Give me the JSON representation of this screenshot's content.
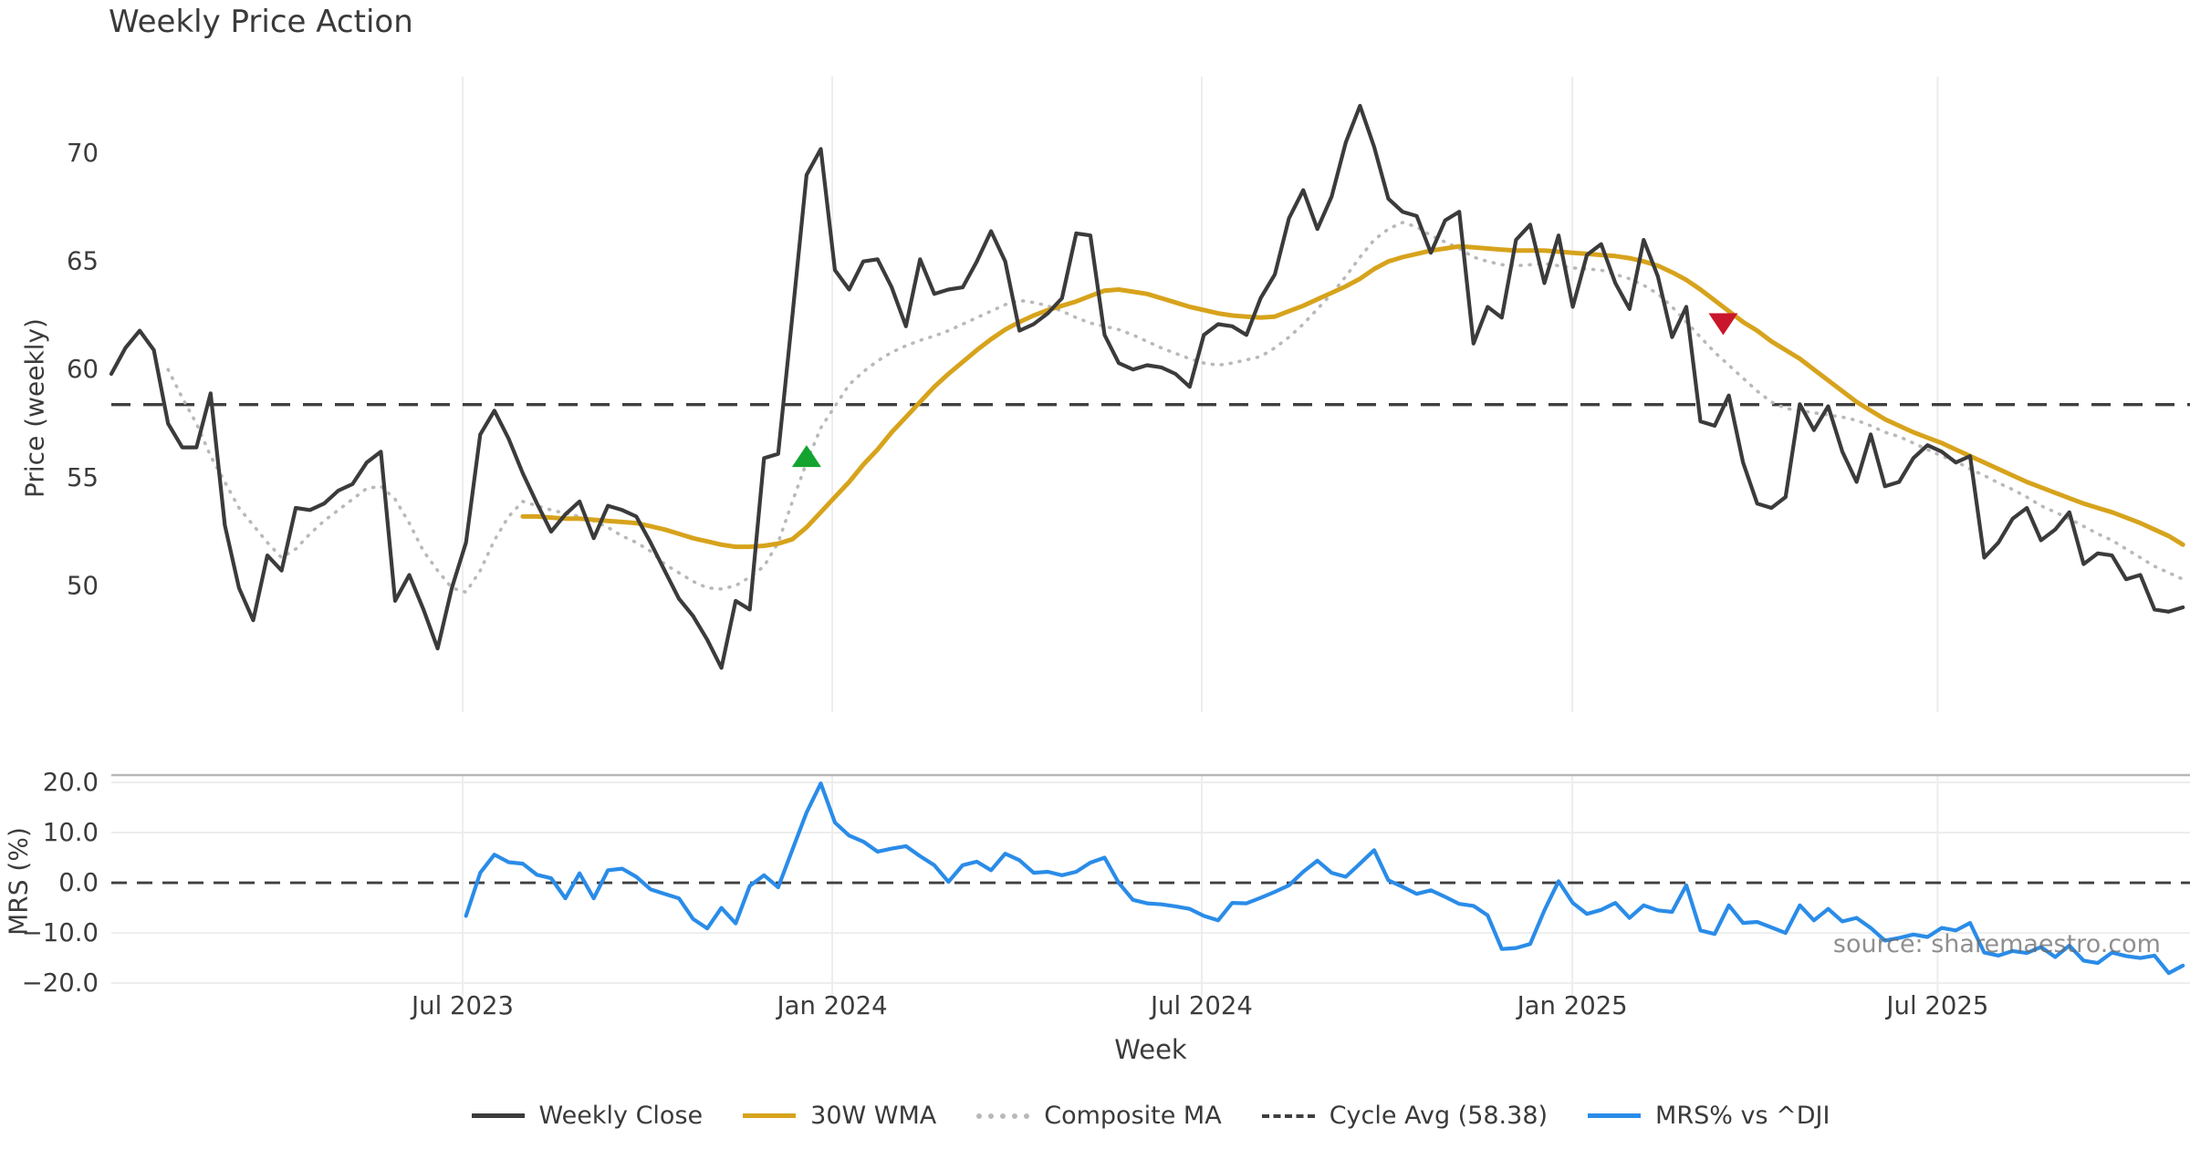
{
  "title": "Weekly Price Action",
  "source_note": "source: sharemaestro.com",
  "colors": {
    "close": "#3b3b3b",
    "wma": "#d7a31c",
    "composite": "#b9b9b9",
    "cycle_avg": "#3f3f3f",
    "mrs": "#2a8ce8",
    "buy_marker": "#12a42f",
    "sell_marker": "#c9162c",
    "gridline": "#ededed",
    "mrs_top_spine": "#b8b8b8",
    "background": "#ffffff"
  },
  "legend": [
    {
      "label": "Weekly Close",
      "color": "#3b3b3b",
      "style": "solid"
    },
    {
      "label": "30W WMA",
      "color": "#d7a31c",
      "style": "solid"
    },
    {
      "label": "Composite MA",
      "color": "#b9b9b9",
      "style": "dotted"
    },
    {
      "label": "Cycle Avg (58.38)",
      "color": "#3f3f3f",
      "style": "dashed"
    },
    {
      "label": "MRS% vs ^DJI",
      "color": "#2a8ce8",
      "style": "solid"
    }
  ],
  "chart_data": {
    "type": "line",
    "title": "Weekly Price Action",
    "x": {
      "label": "Week",
      "unit": "week_index",
      "domain": [
        0,
        146.5
      ],
      "ticks": [
        {
          "label": "Jul 2023",
          "week": 24.76
        },
        {
          "label": "Jan 2024",
          "week": 50.81
        },
        {
          "label": "Jul 2024",
          "week": 76.85
        },
        {
          "label": "Jan 2025",
          "week": 102.97
        },
        {
          "label": "Jul 2025",
          "week": 128.71
        }
      ]
    },
    "panels": [
      {
        "name": "price",
        "ylabel": "Price (weekly)",
        "ylim": [
          44.15,
          73.55
        ],
        "yticks": [
          70,
          65,
          60,
          55,
          50
        ],
        "ytick_format": "integer",
        "cycle_avg": {
          "label": "Cycle Avg (58.38)",
          "value": 58.38
        },
        "series": [
          {
            "name": "Composite MA",
            "color": "#b9b9b9",
            "style": "dotted",
            "width": 3.6,
            "start_week": 4,
            "values": [
              60.0,
              58.7,
              57.5,
              56.0,
              54.8,
              53.6,
              52.8,
              52.0,
              51.3,
              51.7,
              52.4,
              53.0,
              53.5,
              54.0,
              54.5,
              54.6,
              54.0,
              52.9,
              51.6,
              50.7,
              49.9,
              49.7,
              50.7,
              52.1,
              53.2,
              53.9,
              53.7,
              53.5,
              53.35,
              53.2,
              53.0,
              52.7,
              52.3,
              52.0,
              51.6,
              51.0,
              50.6,
              50.2,
              49.9,
              49.85,
              50.0,
              50.4,
              50.9,
              52.0,
              53.9,
              55.7,
              57.3,
              58.3,
              59.3,
              59.9,
              60.4,
              60.8,
              61.1,
              61.35,
              61.55,
              61.8,
              62.1,
              62.4,
              62.7,
              63.0,
              63.2,
              63.1,
              62.95,
              62.7,
              62.4,
              62.15,
              62.0,
              61.85,
              61.6,
              61.3,
              61.0,
              60.75,
              60.5,
              60.3,
              60.2,
              60.3,
              60.45,
              60.6,
              61.0,
              61.5,
              62.1,
              62.8,
              63.5,
              64.3,
              65.2,
              66.0,
              66.5,
              66.8,
              66.6,
              66.2,
              65.9,
              65.6,
              65.2,
              65.0,
              64.85,
              64.8,
              64.85,
              64.9,
              64.8,
              64.7,
              64.65,
              64.6,
              64.4,
              64.2,
              63.9,
              63.5,
              62.9,
              62.2,
              61.5,
              60.8,
              60.2,
              59.6,
              59.0,
              58.5,
              58.2,
              58.1,
              58.0,
              57.9,
              57.8,
              57.65,
              57.4,
              57.1,
              56.9,
              56.6,
              56.3,
              56.0,
              55.75,
              55.4,
              55.1,
              54.75,
              54.45,
              54.1,
              53.7,
              53.4,
              53.1,
              52.75,
              52.4,
              52.1,
              51.7,
              51.3,
              50.9,
              50.6,
              50.3
            ]
          },
          {
            "name": "30W WMA",
            "color": "#d7a31c",
            "style": "solid",
            "width": 5,
            "start_week": 29,
            "values": [
              53.2,
              53.2,
              53.15,
              53.1,
              53.1,
              53.05,
              53.0,
              52.95,
              52.9,
              52.75,
              52.6,
              52.4,
              52.2,
              52.05,
              51.9,
              51.8,
              51.8,
              51.85,
              51.95,
              52.15,
              52.7,
              53.4,
              54.1,
              54.8,
              55.6,
              56.3,
              57.1,
              57.8,
              58.5,
              59.2,
              59.8,
              60.35,
              60.9,
              61.4,
              61.85,
              62.2,
              62.5,
              62.75,
              62.95,
              63.15,
              63.4,
              63.65,
              63.7,
              63.6,
              63.5,
              63.3,
              63.1,
              62.9,
              62.75,
              62.6,
              62.5,
              62.45,
              62.4,
              62.45,
              62.7,
              62.95,
              63.25,
              63.55,
              63.85,
              64.2,
              64.65,
              65.0,
              65.2,
              65.35,
              65.5,
              65.6,
              65.7,
              65.65,
              65.6,
              65.55,
              65.5,
              65.5,
              65.5,
              65.45,
              65.4,
              65.35,
              65.3,
              65.25,
              65.15,
              65.0,
              64.8,
              64.5,
              64.15,
              63.7,
              63.2,
              62.7,
              62.2,
              61.8,
              61.3,
              60.9,
              60.5,
              60.0,
              59.5,
              59.0,
              58.5,
              58.1,
              57.7,
              57.4,
              57.1,
              56.85,
              56.6,
              56.3,
              56.0,
              55.7,
              55.4,
              55.1,
              54.8,
              54.55,
              54.3,
              54.05,
              53.8,
              53.6,
              53.4,
              53.15,
              52.9,
              52.6,
              52.3,
              51.9
            ]
          },
          {
            "name": "Weekly Close",
            "color": "#3b3b3b",
            "style": "solid",
            "width": 4.2,
            "start_week": 0,
            "values": [
              59.8,
              61.0,
              61.8,
              60.9,
              57.5,
              56.4,
              56.4,
              58.9,
              52.8,
              49.9,
              48.4,
              51.4,
              50.7,
              53.6,
              53.5,
              53.8,
              54.4,
              54.7,
              55.7,
              56.2,
              49.3,
              50.5,
              48.9,
              47.1,
              49.9,
              52.0,
              57.0,
              58.1,
              56.8,
              55.2,
              53.8,
              52.5,
              53.3,
              53.9,
              52.2,
              53.7,
              53.5,
              53.2,
              52.0,
              50.7,
              49.4,
              48.6,
              47.5,
              46.2,
              49.3,
              48.9,
              55.9,
              56.1,
              62.5,
              69.0,
              70.2,
              64.6,
              63.7,
              65.0,
              65.1,
              63.8,
              62.0,
              65.1,
              63.5,
              63.7,
              63.8,
              65.0,
              66.4,
              65.0,
              61.8,
              62.1,
              62.6,
              63.3,
              66.3,
              66.2,
              61.6,
              60.3,
              60.0,
              60.2,
              60.1,
              59.8,
              59.2,
              61.6,
              62.1,
              62.0,
              61.6,
              63.3,
              64.4,
              67.0,
              68.3,
              66.5,
              68.0,
              70.5,
              72.2,
              70.3,
              67.9,
              67.3,
              67.1,
              65.4,
              66.9,
              67.3,
              61.2,
              62.9,
              62.4,
              66.0,
              66.7,
              64.0,
              66.2,
              62.9,
              65.3,
              65.8,
              64.0,
              62.8,
              66.0,
              64.3,
              61.5,
              62.9,
              57.6,
              57.4,
              58.8,
              55.7,
              53.8,
              53.6,
              54.1,
              58.4,
              57.2,
              58.3,
              56.2,
              54.8,
              57.0,
              54.6,
              54.8,
              55.9,
              56.5,
              56.2,
              55.7,
              56.0,
              51.3,
              52.0,
              53.1,
              53.6,
              52.1,
              52.6,
              53.4,
              51.0,
              51.5,
              51.4,
              50.3,
              50.5,
              48.9,
              48.8,
              49.0
            ]
          }
        ],
        "markers": [
          {
            "shape": "triangle-up",
            "color": "#12a42f",
            "week": 49.0,
            "value": 56.0
          },
          {
            "shape": "triangle-down",
            "color": "#c9162c",
            "week": 113.6,
            "value": 62.1
          }
        ]
      },
      {
        "name": "mrs",
        "ylabel": "MRS (%)",
        "ylim": [
          -22.7,
          21.45
        ],
        "yticks": [
          20,
          10,
          0,
          -10,
          -20
        ],
        "ytick_format": "one_decimal",
        "zero_line_dashed": true,
        "series": [
          {
            "name": "MRS% vs ^DJI",
            "color": "#2a8ce8",
            "style": "solid",
            "width": 4.2,
            "start_week": 25,
            "values": [
              -6.6,
              2.0,
              5.6,
              4.1,
              3.8,
              1.6,
              0.9,
              -3.1,
              1.9,
              -3.1,
              2.5,
              2.8,
              1.2,
              -1.3,
              -2.2,
              -3.1,
              -7.2,
              -9.1,
              -5.0,
              -8.1,
              -0.6,
              1.5,
              -0.9,
              6.6,
              14.0,
              19.8,
              12.0,
              9.4,
              8.2,
              6.2,
              6.8,
              7.3,
              5.3,
              3.5,
              0.2,
              3.5,
              4.2,
              2.5,
              5.8,
              4.5,
              2.0,
              2.2,
              1.5,
              2.2,
              4.0,
              5.0,
              0.0,
              -3.4,
              -4.1,
              -4.3,
              -4.7,
              -5.2,
              -6.6,
              -7.5,
              -4.0,
              -4.1,
              -3.0,
              -1.8,
              -0.5,
              2.2,
              4.4,
              2.0,
              1.2,
              3.8,
              6.5,
              0.5,
              -0.8,
              -2.2,
              -1.5,
              -2.8,
              -4.2,
              -4.6,
              -6.5,
              -13.2,
              -13.0,
              -12.2,
              -5.5,
              0.3,
              -4.0,
              -6.2,
              -5.4,
              -4.0,
              -7.0,
              -4.5,
              -5.5,
              -5.8,
              -0.5,
              -9.5,
              -10.2,
              -4.5,
              -8.0,
              -7.8,
              -8.9,
              -10.0,
              -4.5,
              -7.5,
              -5.2,
              -7.7,
              -7.0,
              -9.0,
              -11.5,
              -11.0,
              -10.3,
              -10.8,
              -9.0,
              -9.5,
              -8.0,
              -13.9,
              -14.5,
              -13.6,
              -14.0,
              -12.8,
              -14.8,
              -12.5,
              -15.5,
              -16.0,
              -13.9,
              -14.6,
              -15.0,
              -14.5,
              -18.0,
              -16.5
            ]
          }
        ]
      }
    ]
  }
}
